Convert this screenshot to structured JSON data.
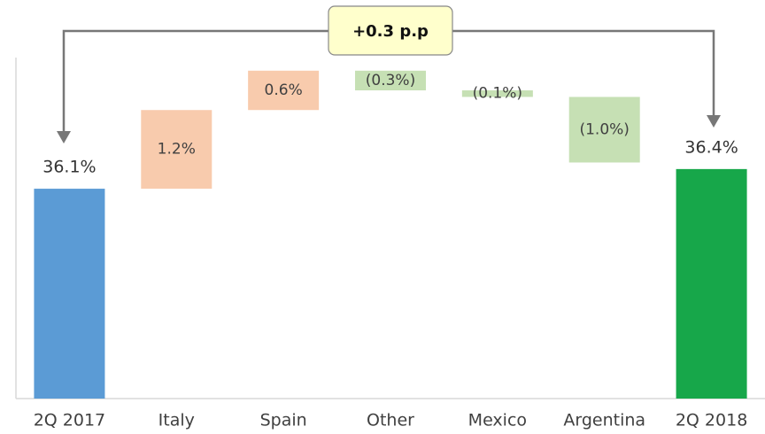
{
  "chart_data": {
    "type": "waterfall",
    "categories": [
      "2Q 2017",
      "Italy",
      "Spain",
      "Other",
      "Mexico",
      "Argentina",
      "2Q 2018"
    ],
    "values": [
      36.1,
      1.2,
      0.6,
      -0.3,
      -0.1,
      -1.0,
      36.4
    ],
    "value_labels": [
      "36.1%",
      "1.2%",
      "0.6%",
      "(0.3%)",
      "(0.1%)",
      "(1.0%)",
      "36.4%"
    ],
    "colors": [
      "#5b9bd5",
      "#f8cbad",
      "#f8cbad",
      "#c6e0b4",
      "#c6e0b4",
      "#c6e0b4",
      "#17a74a"
    ],
    "ylim": [
      32.9,
      38.1
    ],
    "annotation": "+0.3 p.p"
  }
}
